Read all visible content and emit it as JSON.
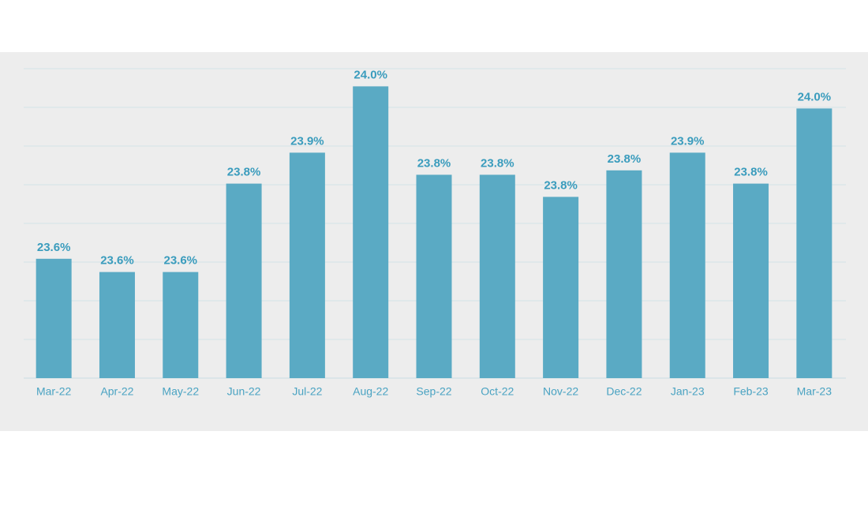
{
  "chart_data": {
    "type": "bar",
    "categories": [
      "Mar-22",
      "Apr-22",
      "May-22",
      "Jun-22",
      "Jul-22",
      "Aug-22",
      "Sep-22",
      "Oct-22",
      "Nov-22",
      "Dec-22",
      "Jan-23",
      "Feb-23",
      "Mar-23"
    ],
    "values": [
      23.63,
      23.6,
      23.6,
      23.8,
      23.87,
      24.02,
      23.82,
      23.82,
      23.77,
      23.83,
      23.87,
      23.8,
      23.97
    ],
    "value_labels": [
      "23.6%",
      "23.6%",
      "23.6%",
      "23.8%",
      "23.9%",
      "24.0%",
      "23.8%",
      "23.8%",
      "23.8%",
      "23.8%",
      "23.9%",
      "23.8%",
      "24.0%"
    ],
    "color": "#5aaac4",
    "ylim": [
      23.36,
      24.06
    ]
  }
}
